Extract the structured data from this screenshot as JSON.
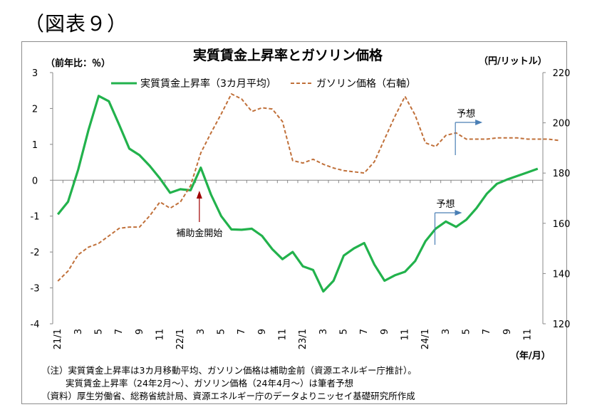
{
  "figure_label": "（図表９）",
  "chart_data": {
    "type": "line",
    "title": "実質賃金上昇率とガソリン価格",
    "left_unit": "（前年比：％）",
    "right_unit": "（円/リットル）",
    "x_unit": "（年/月）",
    "x_labels": [
      "21/1",
      "3",
      "5",
      "7",
      "9",
      "11",
      "22/1",
      "3",
      "5",
      "7",
      "9",
      "11",
      "23/1",
      "3",
      "5",
      "7",
      "9",
      "11",
      "24/1",
      "3",
      "5",
      "7",
      "9",
      "11"
    ],
    "left_axis": {
      "min": -4,
      "max": 3,
      "ticks": [
        3,
        2,
        1,
        0,
        -1,
        -2,
        -3,
        -4
      ]
    },
    "right_axis": {
      "min": 120,
      "max": 220,
      "ticks": [
        220,
        200,
        180,
        160,
        140,
        120
      ]
    },
    "grid": false,
    "legend_position": "top",
    "series": [
      {
        "name": "実質賃金上昇率（3カ月平均）",
        "axis": "left",
        "style": "solid",
        "color": "#22b24c",
        "values": [
          -0.95,
          -0.6,
          0.3,
          1.4,
          2.35,
          2.2,
          1.55,
          0.88,
          0.7,
          0.4,
          0.05,
          -0.35,
          -0.25,
          -0.28,
          0.35,
          -0.4,
          -1.0,
          -1.37,
          -1.38,
          -1.35,
          -1.55,
          -1.92,
          -2.2,
          -2.0,
          -2.4,
          -2.5,
          -3.1,
          -2.8,
          -2.1,
          -1.9,
          -1.75,
          -2.35,
          -2.8,
          -2.65,
          -2.55,
          -2.25,
          -1.7,
          -1.35,
          -1.15,
          -1.3,
          -1.1,
          -0.78,
          -0.38,
          -0.1,
          0.02,
          0.12,
          0.22,
          0.32
        ]
      },
      {
        "name": "ガソリン価格（右軸）",
        "axis": "right",
        "style": "dashed",
        "color": "#c0703a",
        "values": [
          137,
          141,
          147.5,
          150.5,
          152,
          155,
          158,
          158.5,
          158.5,
          163,
          168.5,
          166,
          168.5,
          175,
          188,
          196,
          203.5,
          211.5,
          209.5,
          204.5,
          206,
          205.5,
          200.5,
          185,
          184,
          185.5,
          183.5,
          182,
          181,
          180.5,
          180,
          184.5,
          193.5,
          202.5,
          210.5,
          203,
          192,
          190.5,
          195,
          196,
          193.5,
          193.5,
          193.5,
          194,
          194,
          194,
          193.5,
          193.5,
          193.5,
          193
        ]
      }
    ],
    "annotations": [
      {
        "label": "補助金開始"
      },
      {
        "label": "予想"
      },
      {
        "label": "予想"
      }
    ]
  },
  "notes": [
    "（注）実質賃金上昇率は3カ月移動平均、ガソリン価格は補助金前（資源エネルギー庁推計）。",
    "実質賃金上昇率（24年2月～）、ガソリン価格（24年4月～）は筆者予想",
    "（資料）厚生労働省、総務省統計局、資源エネルギー庁のデータよりニッセイ基礎研究所作成"
  ]
}
